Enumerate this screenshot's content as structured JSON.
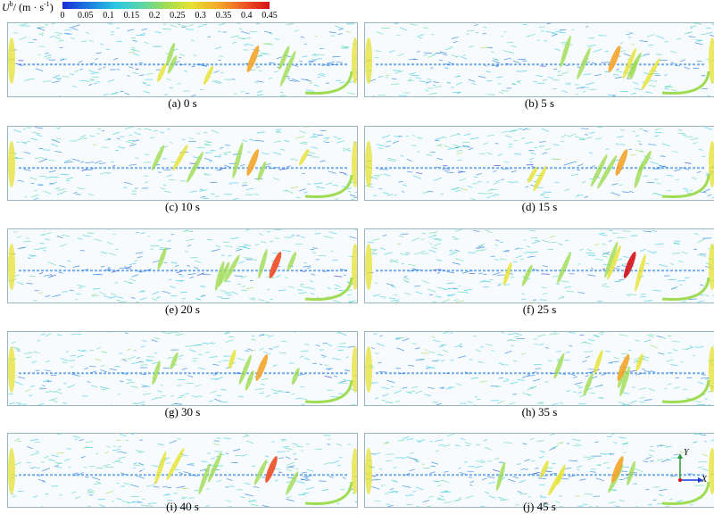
{
  "legend": {
    "title_main": "U",
    "title_sup": "b",
    "title_unit": "/ (m · s",
    "title_unit_sup": "-1",
    "title_close": ")",
    "ticks": [
      "0",
      "0.05",
      "0.1",
      "0.15",
      "0.2",
      "0.25",
      "0.3",
      "0.35",
      "0.4",
      "0.45"
    ],
    "min": 0,
    "max": 0.45,
    "colors": [
      "#1c2bd8",
      "#1a78e0",
      "#2fc8e4",
      "#58d6a8",
      "#9fdc54",
      "#e6e230",
      "#f3a42a",
      "#ec4a22",
      "#d21018"
    ]
  },
  "panels": [
    {
      "label": "(a) 0 s",
      "hotspot": 0.33
    },
    {
      "label": "(b) 5 s",
      "hotspot": 0.34
    },
    {
      "label": "(c) 10 s",
      "hotspot": 0.36
    },
    {
      "label": "(d) 15 s",
      "hotspot": 0.35
    },
    {
      "label": "(e) 20 s",
      "hotspot": 0.38
    },
    {
      "label": "(f) 25 s",
      "hotspot": 0.44
    },
    {
      "label": "(g) 30 s",
      "hotspot": 0.33
    },
    {
      "label": "(h) 35 s",
      "hotspot": 0.35
    },
    {
      "label": "(i) 40 s",
      "hotspot": 0.42
    },
    {
      "label": "(j) 45 s",
      "hotspot": 0.36
    }
  ],
  "axes": {
    "y_label": "Y",
    "x_label": "X"
  }
}
